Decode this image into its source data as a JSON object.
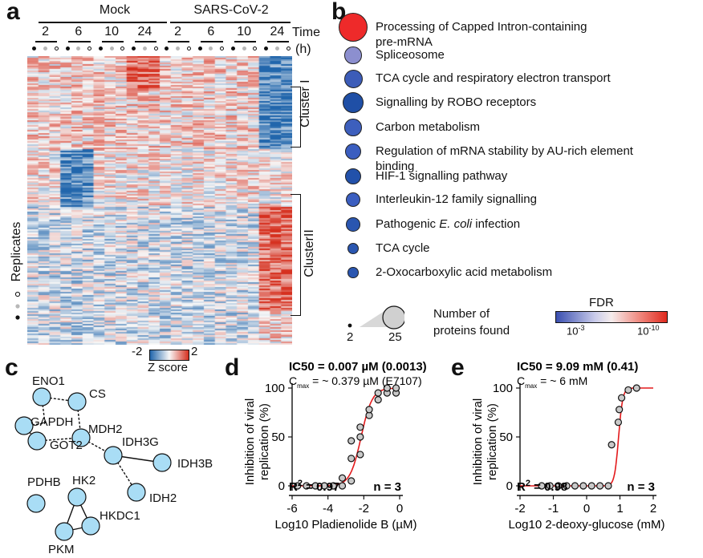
{
  "panels": {
    "a": "a",
    "b": "b",
    "c": "c",
    "d": "d",
    "e": "e"
  },
  "heatmap": {
    "groups": [
      {
        "label": "Mock"
      },
      {
        "label": "SARS-CoV-2"
      }
    ],
    "times": [
      "2",
      "6",
      "10",
      "24",
      "2",
      "6",
      "10",
      "24"
    ],
    "time_label": "Time",
    "time_unit": "(h)",
    "replicates_label": "Replicates",
    "clusters": [
      "Cluster I",
      "ClusterII"
    ],
    "colorbar": {
      "min": "-2",
      "max": "2",
      "label": "Z score",
      "colors": [
        "#2166ac",
        "#f7f7f7",
        "#d6301f"
      ]
    }
  },
  "enrichment": {
    "items": [
      {
        "lines": [
          "Processing of Capped Intron-containing",
          "pre-mRNA"
        ],
        "size": 0.95,
        "color": "#ee2a2a"
      },
      {
        "lines": [
          "Spliceosome"
        ],
        "size": 0.45,
        "color": "#8c8fcf"
      },
      {
        "lines": [
          "TCA cycle and respiratory electron transport"
        ],
        "size": 0.5,
        "color": "#3c5cb8"
      },
      {
        "lines": [
          "Signalling by ROBO receptors"
        ],
        "size": 0.6,
        "color": "#1f4fa6"
      },
      {
        "lines": [
          "Carbon metabolism"
        ],
        "size": 0.45,
        "color": "#3d5fbd"
      },
      {
        "lines": [
          "Regulation of mRNA stability by AU-rich element",
          "binding"
        ],
        "size": 0.4,
        "color": "#3b5ec0"
      },
      {
        "lines": [
          "HIF-1 signalling pathway"
        ],
        "size": 0.42,
        "color": "#2251aa"
      },
      {
        "lines": [
          "Interleukin-12 family signalling"
        ],
        "size": 0.35,
        "color": "#3b5ec0"
      },
      {
        "lines": [
          "Pathogenic <i>E. coli</i> infection"
        ],
        "size": 0.32,
        "color": "#2a56b0"
      },
      {
        "lines": [
          "TCA cycle"
        ],
        "size": 0.22,
        "color": "#2a56b0"
      },
      {
        "lines": [
          "2-Oxocarboxylic acid metabolism"
        ],
        "size": 0.18,
        "color": "#2a56b0"
      }
    ],
    "size_legend": {
      "min": "2",
      "max": "25",
      "label_lines": [
        "Number of",
        "proteins found"
      ]
    },
    "fdr_legend": {
      "title": "FDR",
      "min": "10",
      "min_exp": "-3",
      "max": "10",
      "max_exp": "-10"
    }
  },
  "network": {
    "nodes": [
      "ENO1",
      "CS",
      "GAPDH",
      "MDH2",
      "GOT2",
      "IDH3G",
      "IDH3B",
      "IDH2",
      "PDHB",
      "HK2",
      "HKDC1",
      "PKM"
    ]
  },
  "chart_data": [
    {
      "type": "scatter",
      "panel": "d",
      "annotation_bold": "IC50 = 0.007 µM (0.0013)",
      "annotation_cmax": "C",
      "annotation_cmax_sub": "max",
      "annotation_cmax_rest": " = ~ 0.379 µM (E7107)",
      "r2_label": "R",
      "r2_sup": "2",
      "r2_value": " = 0.97",
      "n_label": "n = 3",
      "xlabel": "Log10 Pladienolide B (µM)",
      "ylabel_lines": [
        "Inhibition of viral",
        "replication (%)"
      ],
      "xlim": [
        -6,
        0
      ],
      "ylim": [
        0,
        100
      ],
      "xticks": [
        -6,
        -4,
        -2,
        0
      ],
      "yticks": [
        0,
        50,
        100
      ],
      "points": [
        [
          -5.7,
          0
        ],
        [
          -5.2,
          0
        ],
        [
          -4.7,
          0
        ],
        [
          -4.2,
          0
        ],
        [
          -3.7,
          0
        ],
        [
          -3.2,
          0
        ],
        [
          -3.2,
          8
        ],
        [
          -2.7,
          5
        ],
        [
          -2.7,
          28
        ],
        [
          -2.7,
          46
        ],
        [
          -2.2,
          32
        ],
        [
          -2.2,
          50
        ],
        [
          -2.2,
          60
        ],
        [
          -1.7,
          72
        ],
        [
          -1.7,
          78
        ],
        [
          -1.2,
          88
        ],
        [
          -1.2,
          95
        ],
        [
          -0.7,
          95
        ],
        [
          -0.7,
          100
        ],
        [
          -0.2,
          95
        ],
        [
          -0.2,
          100
        ]
      ],
      "curve": {
        "bottom": 0,
        "top": 100,
        "logx50": -2.15,
        "hill": 1.4
      },
      "point_color": "#c9c9c9",
      "curve_color": "#e31a1c"
    },
    {
      "type": "scatter",
      "panel": "e",
      "annotation_bold": "IC50 = 9.09 mM (0.41)",
      "annotation_cmax": "C",
      "annotation_cmax_sub": "max",
      "annotation_cmax_rest": " = ~ 6 mM",
      "r2_label": "R",
      "r2_sup": "2",
      "r2_value": " = 0.98",
      "n_label": "n = 3",
      "xlabel": "Log10 2-deoxy-glucose (mM)",
      "ylabel_lines": [
        "Inhibition of viral",
        "replication (%)"
      ],
      "xlim": [
        -2,
        2
      ],
      "ylim": [
        0,
        100
      ],
      "xticks": [
        -2,
        -1,
        0,
        1,
        2
      ],
      "yticks": [
        0,
        50,
        100
      ],
      "points": [
        [
          -1.35,
          0
        ],
        [
          -1.1,
          0
        ],
        [
          -0.85,
          0
        ],
        [
          -0.6,
          0
        ],
        [
          -0.35,
          0
        ],
        [
          -0.1,
          0
        ],
        [
          0.15,
          0
        ],
        [
          0.4,
          0
        ],
        [
          0.65,
          0
        ],
        [
          0.75,
          42
        ],
        [
          0.95,
          65
        ],
        [
          0.98,
          78
        ],
        [
          1.05,
          90
        ],
        [
          1.25,
          98
        ],
        [
          1.5,
          100
        ]
      ],
      "curve": {
        "bottom": 0,
        "top": 100,
        "logx50": 0.96,
        "hill": 7
      },
      "point_color": "#c9c9c9",
      "curve_color": "#e31a1c"
    }
  ]
}
